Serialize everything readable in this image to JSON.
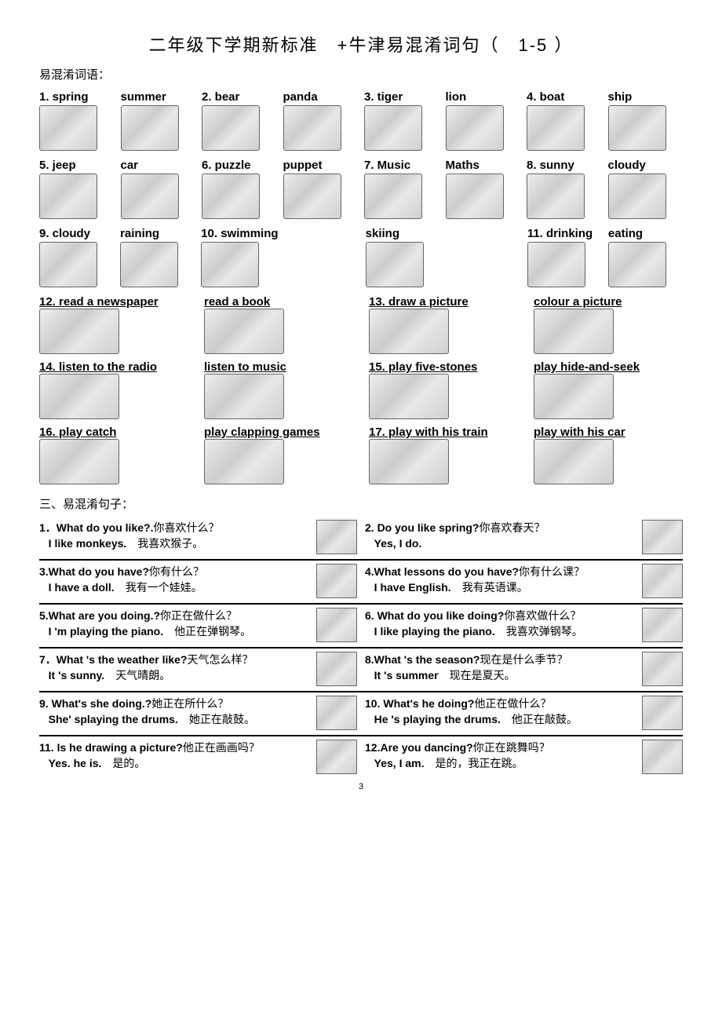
{
  "title": "二年级下学期新标准　+牛津易混淆词句（　1-5 ）",
  "subtitle": "易混淆词语：",
  "vocab_rows": [
    [
      {
        "label": "1. spring",
        "u": false
      },
      {
        "label": "summer",
        "u": false
      },
      {
        "label": "2. bear",
        "u": false
      },
      {
        "label": "panda",
        "u": false
      },
      {
        "label": "3. tiger",
        "u": false
      },
      {
        "label": "lion",
        "u": false
      },
      {
        "label": "4. boat",
        "u": false
      },
      {
        "label": "ship",
        "u": false
      }
    ],
    [
      {
        "label": "5. jeep",
        "u": false
      },
      {
        "label": "car",
        "u": false
      },
      {
        "label": "6. puzzle",
        "u": false
      },
      {
        "label": "puppet",
        "u": false
      },
      {
        "label": "7. Music",
        "u": false
      },
      {
        "label": "Maths",
        "u": false
      },
      {
        "label": "8. sunny",
        "u": false
      },
      {
        "label": "cloudy",
        "u": false
      }
    ],
    [
      {
        "label": "9. cloudy",
        "u": false
      },
      {
        "label": "raining",
        "u": false
      },
      {
        "label": "10. swimming",
        "u": false
      },
      {
        "label": "",
        "u": false
      },
      {
        "label": "skiing",
        "u": false
      },
      {
        "label": "",
        "u": false
      },
      {
        "label": "11. drinking",
        "u": false
      },
      {
        "label": "eating",
        "u": false
      }
    ]
  ],
  "phrase_rows": [
    [
      {
        "label": "12. read a newspaper"
      },
      {
        "label": "read a book"
      },
      {
        "label": "13. draw a picture"
      },
      {
        "label": "colour a picture"
      }
    ],
    [
      {
        "label": "14. listen to the radio"
      },
      {
        "label": "listen to music"
      },
      {
        "label": "15. play five-stones"
      },
      {
        "label": "play hide-and-seek"
      }
    ],
    [
      {
        "label": "16. play catch"
      },
      {
        "label": "play clapping games"
      },
      {
        "label": "17. play with his train"
      },
      {
        "label": "play with his car"
      }
    ]
  ],
  "section3": "三、易混淆句子：",
  "qa": [
    {
      "left": {
        "q": "1．What do you like?.",
        "qcn": "你喜欢什么？",
        "a": "I like monkeys.",
        "acn": "我喜欢猴子。"
      },
      "right": {
        "q": "2. Do you like spring?",
        "qcn": "你喜欢春天？",
        "a": "Yes, I do.",
        "acn": ""
      }
    },
    {
      "left": {
        "q": "3.What do you have?",
        "qcn": "你有什么？",
        "a": "I have a doll.",
        "acn": "我有一个娃娃。"
      },
      "right": {
        "q": "4.What lessons do you have?",
        "qcn": "你有什么课？",
        "a": "I have English.",
        "acn": "我有英语课。"
      }
    },
    {
      "left": {
        "q": "5.What are you doing.?",
        "qcn": "你正在做什么？",
        "a": "I 'm playing the piano.",
        "acn": "他正在弹钢琴。"
      },
      "right": {
        "q": "6. What do you like doing?",
        "qcn": "你喜欢做什么？",
        "a": "I like playing the piano.",
        "acn": "我喜欢弹钢琴。"
      }
    },
    {
      "left": {
        "q": "7．What 's the weather like?",
        "qcn": "天气怎么样？",
        "a": "It 's sunny.",
        "acn": "天气晴朗。"
      },
      "right": {
        "q": "8.What 's the season?",
        "qcn": "现在是什么季节？",
        "a": "It 's summer",
        "acn": "现在是夏天。"
      }
    },
    {
      "left": {
        "q": "9. What's she doing.?",
        "qcn": "她正在所什么？",
        "a": "She' splaying the drums.",
        "acn": "她正在敲鼓。"
      },
      "right": {
        "q": "10. What's he doing?",
        "qcn": "他正在做什么？",
        "a": "He 's playing the drums.",
        "acn": "他正在敲鼓。"
      }
    },
    {
      "left": {
        "q": "11. Is he drawing a picture?",
        "qcn": "他正在画画吗？",
        "a": "Yes. he is.",
        "acn": "是的。"
      },
      "right": {
        "q": "12.Are you dancing?",
        "qcn": "你正在跳舞吗？",
        "a": "Yes, I am.",
        "acn": "是的，我正在跳。"
      }
    }
  ],
  "pagenum": "3"
}
